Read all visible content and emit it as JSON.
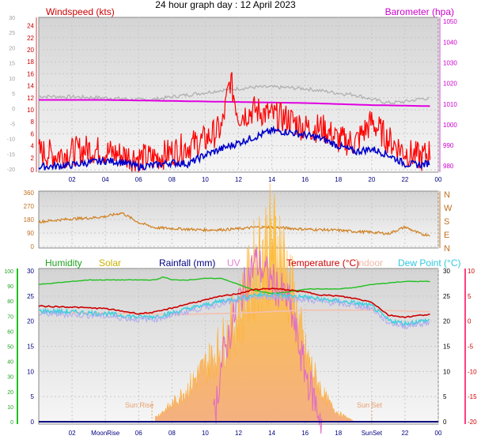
{
  "title": "24 hour graph day : 12 April 2023",
  "chart_data": [
    {
      "type": "line",
      "panel": "wind-baro",
      "left_label": "Windspeed (kts)",
      "right_label": "Barometer (hpa)",
      "x_ticks": [
        "02",
        "04",
        "06",
        "08",
        "10",
        "12",
        "14",
        "16",
        "18",
        "20",
        "22",
        "00"
      ],
      "left_ticks": [
        "0",
        "2",
        "4",
        "6",
        "8",
        "10",
        "12",
        "14",
        "16",
        "18",
        "20",
        "22",
        "24"
      ],
      "left_ylim": [
        0,
        25
      ],
      "outer_left_ticks": [
        "-20",
        "-15",
        "-10",
        "-5",
        "0",
        "5",
        "10",
        "15",
        "20",
        "25",
        "30"
      ],
      "right_ticks": [
        "980",
        "990",
        "1000",
        "1010",
        "1020",
        "1030",
        "1040",
        "1050"
      ],
      "right_ylim": [
        977,
        1052
      ],
      "colors": {
        "gust": "#ff0000",
        "avg": "#0000cc",
        "baro": "#e000e0",
        "temp": "#b0b0b0",
        "left": "#cc0000",
        "right": "#cc00cc"
      },
      "series": [
        {
          "key": "gust",
          "x": [
            0,
            1,
            2,
            3,
            4,
            5,
            6,
            7,
            8,
            9,
            10,
            11,
            11.5,
            12,
            13,
            14,
            15,
            16,
            17,
            18,
            19,
            20,
            21,
            22,
            23,
            23.5
          ],
          "values": [
            3,
            2.5,
            3,
            3.5,
            3,
            2.5,
            2,
            2,
            3,
            4,
            5,
            7,
            15,
            9,
            10,
            9,
            8.5,
            7,
            7,
            5,
            4.5,
            8,
            5,
            3,
            2,
            3
          ]
        },
        {
          "key": "avg",
          "x": [
            0,
            1,
            2,
            3,
            4,
            5,
            6,
            7,
            8,
            9,
            10,
            11,
            12,
            13,
            14,
            15,
            16,
            17,
            18,
            19,
            20,
            21,
            22,
            23,
            23.5
          ],
          "values": [
            0.5,
            0.6,
            0.8,
            1.2,
            1.5,
            1.3,
            0.5,
            0.8,
            1.2,
            1,
            2.5,
            3.5,
            4.5,
            5.5,
            6.5,
            6.3,
            5.8,
            5.2,
            4,
            3,
            3.5,
            2.5,
            1,
            0.8,
            1.2
          ]
        },
        {
          "key": "baro",
          "x": [
            0,
            4,
            8,
            12,
            16,
            20,
            23.5
          ],
          "values": [
            1012,
            1012,
            1011.5,
            1011,
            1010.5,
            1009.5,
            1009
          ]
        },
        {
          "key": "temp",
          "x": [
            0,
            2,
            4,
            6,
            7,
            8,
            9,
            10,
            11,
            12,
            13,
            14,
            15,
            16,
            17,
            18,
            19,
            20,
            21,
            22,
            23,
            23.5
          ],
          "values": [
            4,
            3.8,
            3.5,
            2.8,
            3,
            3.8,
            4.5,
            5.2,
            6,
            6.5,
            7,
            7,
            6.8,
            6.5,
            5.8,
            5,
            4.5,
            3,
            1.8,
            2.2,
            3.2,
            3.3
          ]
        }
      ]
    },
    {
      "type": "line",
      "panel": "wind-direction",
      "left_ticks": [
        "0",
        "90",
        "180",
        "270",
        "360"
      ],
      "ylim": [
        0,
        360
      ],
      "right_labels": [
        "N",
        "W",
        "S",
        "E",
        "N"
      ],
      "color": "#d08020",
      "x": [
        0,
        1,
        2,
        3,
        4,
        5,
        6,
        7,
        8,
        9,
        10,
        11,
        12,
        13,
        14,
        15,
        16,
        17,
        18,
        19,
        20,
        21,
        22,
        23,
        23.5
      ],
      "values": [
        165,
        175,
        185,
        190,
        200,
        225,
        160,
        125,
        120,
        115,
        110,
        112,
        118,
        128,
        130,
        122,
        115,
        112,
        108,
        100,
        95,
        85,
        130,
        80,
        78
      ]
    },
    {
      "type": "area",
      "panel": "temp-solar",
      "legend": [
        "Humidity",
        "Solar",
        "Rainfall (mm)",
        "UV",
        "Temperature (°C)",
        "Indoor",
        "Dew Point (°C)"
      ],
      "colors": {
        "humidity": "#20c020",
        "solar": "#d0b000",
        "rain": "#000080",
        "uv": "#e070c0",
        "temp": "#cc0000",
        "indoor": "#f4c0b0",
        "dew": "#40d0e0"
      },
      "x_ticks": [
        "02",
        "MoonRise",
        "06",
        "08",
        "10",
        "12",
        "14",
        "16",
        "18",
        "SunSet",
        "22",
        "00"
      ],
      "sunrise_label": "Sun Rise",
      "sunset_label": "Sun Set",
      "humidity_ticks": [
        "0",
        "10",
        "20",
        "30",
        "40",
        "50",
        "60",
        "70",
        "80",
        "90",
        "100"
      ],
      "rain_ticks": [
        "0",
        "5",
        "10",
        "15",
        "20",
        "25",
        "30"
      ],
      "temp_ticks": [
        "-20",
        "-15",
        "-10",
        "-5",
        "0",
        "5",
        "10"
      ],
      "temp_ylim": [
        -20,
        10
      ],
      "humidity_ylim": [
        0,
        100
      ],
      "series": [
        {
          "key": "humidity",
          "x": [
            0,
            1,
            2,
            3,
            4,
            5,
            6,
            7,
            7.5,
            8,
            9,
            10,
            11,
            12,
            13,
            14,
            15,
            16,
            17,
            18,
            19,
            20,
            21,
            22,
            23,
            23.5
          ],
          "values": [
            91,
            92,
            93,
            94,
            94,
            94,
            94,
            94,
            96,
            94,
            94,
            95,
            95,
            91,
            87,
            85,
            86,
            88,
            88,
            88,
            89,
            91,
            92,
            93,
            93,
            93
          ]
        },
        {
          "key": "temp",
          "x": [
            0,
            2,
            4,
            6,
            7,
            8,
            9,
            10,
            11,
            12,
            13,
            14,
            15,
            16,
            17,
            18,
            19,
            20,
            21,
            22,
            23,
            23.5
          ],
          "values": [
            3,
            2.8,
            2.5,
            1.5,
            1.8,
            2.6,
            3.5,
            4.2,
            5,
            5.5,
            6.3,
            6.5,
            6.2,
            5.8,
            5.2,
            5,
            4.5,
            3.8,
            1.2,
            0.8,
            1.2,
            1.4
          ]
        },
        {
          "key": "dew",
          "x": [
            0,
            2,
            4,
            6,
            7,
            8,
            9,
            10,
            11,
            12,
            13,
            14,
            15,
            16,
            17,
            18,
            19,
            20,
            21,
            22,
            23,
            23.5
          ],
          "values": [
            2,
            1.8,
            1.5,
            0.8,
            0.9,
            1.6,
            2.5,
            3.2,
            4,
            4.5,
            5.2,
            5.3,
            5,
            4.8,
            4.3,
            4,
            3.6,
            3,
            0.2,
            -0.5,
            0,
            0.2
          ]
        },
        {
          "key": "indoor",
          "x": [
            0,
            4,
            8,
            12,
            16,
            20,
            23.5
          ],
          "values": [
            73,
            72,
            71,
            72,
            74,
            74,
            73
          ]
        },
        {
          "key": "solar",
          "x": [
            7,
            8,
            9,
            10,
            11,
            12,
            12.5,
            13,
            13.5,
            14,
            14.5,
            15,
            16,
            17,
            17.5,
            18,
            19
          ],
          "values": [
            1,
            4,
            8,
            13,
            18,
            25,
            30,
            36,
            40,
            42,
            40,
            33,
            16,
            7,
            4,
            2,
            0
          ]
        },
        {
          "key": "uv",
          "x": [
            10.5,
            11,
            12,
            12.5,
            13,
            14,
            15,
            16,
            17
          ],
          "values": [
            0,
            12,
            24,
            28,
            32,
            28,
            24,
            10,
            0
          ]
        }
      ]
    }
  ]
}
